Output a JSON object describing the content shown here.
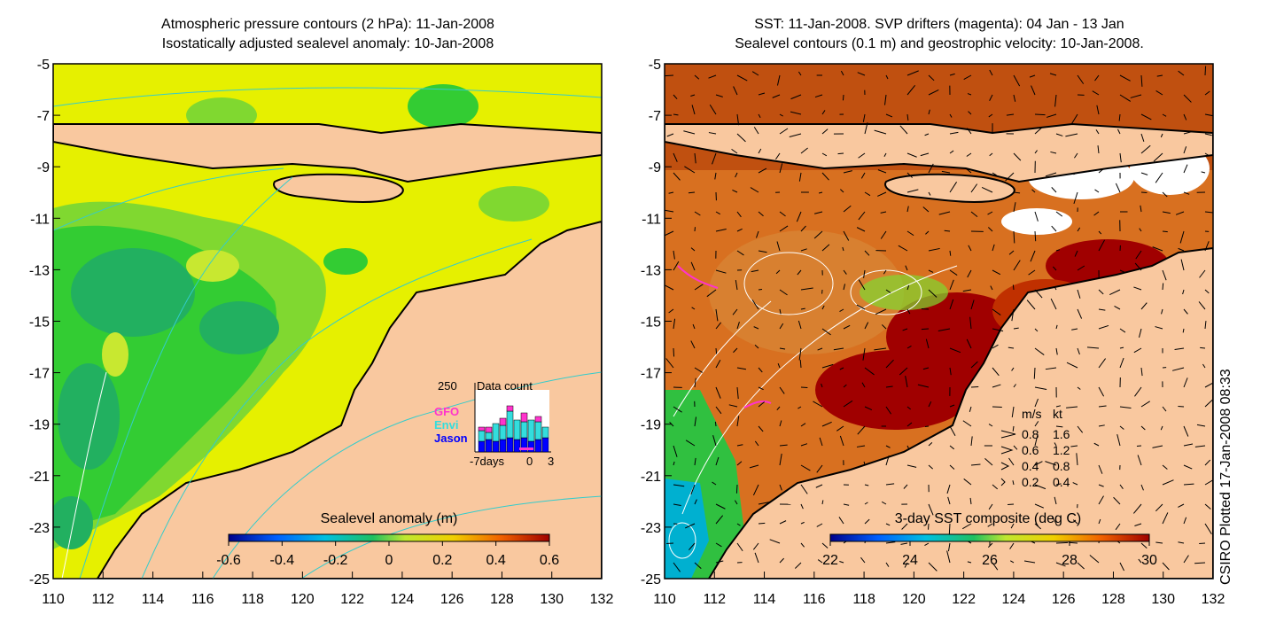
{
  "left_panel": {
    "title_line1": "Atmospheric pressure contours (2 hPa): 11-Jan-2008",
    "title_line2": "Isostatically adjusted sealevel anomaly: 10-Jan-2008",
    "colorbar": {
      "label": "Sealevel anomaly (m)",
      "ticks": [
        "-0.6",
        "-0.4",
        "-0.2",
        "0",
        "0.2",
        "0.4",
        "0.6"
      ]
    },
    "inset": {
      "title": "Data count",
      "ymax_label": "250",
      "x_labels": [
        "-7days",
        "0",
        "3"
      ],
      "legend": [
        {
          "name": "GFO",
          "color": "#ff33cc"
        },
        {
          "name": "Envi",
          "color": "#33dddd"
        },
        {
          "name": "Jason",
          "color": "#0000ff"
        }
      ]
    }
  },
  "right_panel": {
    "title_line1": "SST: 11-Jan-2008. SVP drifters (magenta): 04 Jan - 13 Jan",
    "title_line2": "Sealevel contours (0.1 m) and geostrophic velocity: 10-Jan-2008.",
    "colorbar": {
      "label": "3-day SST composite (deg C)",
      "ticks": [
        "22",
        "24",
        "26",
        "28",
        "30"
      ]
    },
    "velocity_legend": {
      "header": [
        "m/s",
        "kt"
      ],
      "rows": [
        [
          "0.8",
          "1.6"
        ],
        [
          "0.6",
          "1.2"
        ],
        [
          "0.4",
          "0.8"
        ],
        [
          "0.2",
          "0.4"
        ]
      ]
    }
  },
  "axes": {
    "y_ticks": [
      "-5",
      "-7",
      "-9",
      "-11",
      "-13",
      "-15",
      "-17",
      "-19",
      "-21",
      "-23",
      "-25"
    ],
    "x_ticks": [
      "110",
      "112",
      "114",
      "116",
      "118",
      "120",
      "122",
      "124",
      "126",
      "128",
      "130",
      "132"
    ]
  },
  "credit": "CSIRO Plotted 17-Jan-2008 08:33",
  "colors": {
    "land": "#f9c89f",
    "sla_green": "#33cc33",
    "sla_yellow": "#e6f000",
    "sst_orange": "#d06010",
    "sst_darkred": "#a00000",
    "contour_cyan": "#33cccc",
    "drifter": "#ff33cc"
  }
}
